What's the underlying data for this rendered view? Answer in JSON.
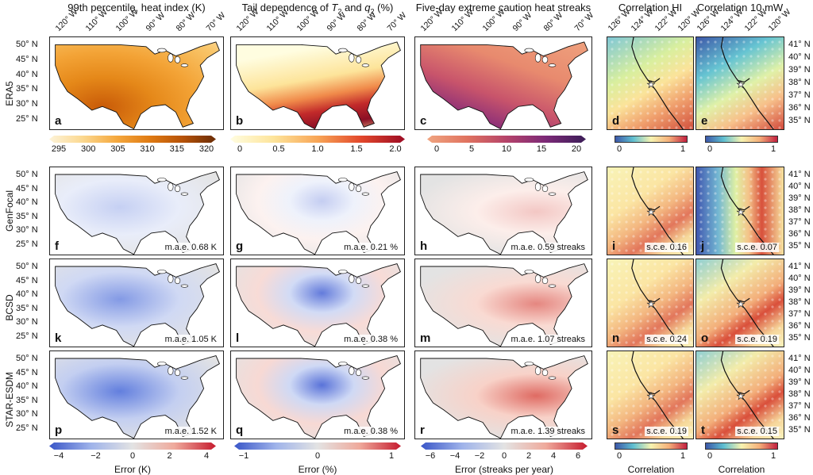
{
  "titles": {
    "col1": "99th percentile, heat index (K)",
    "col2_pre": "Tail dependence of ",
    "col2_t": "T",
    "col2_tsub": "2",
    "col2_and": " and ",
    "col2_q": "q",
    "col2_qsub": "2",
    "col2_post": " (%)",
    "col3": "Five-day extreme caution heat streaks",
    "col4": "Correlation HI",
    "col5": "Correlation 10 mW"
  },
  "rows": [
    "ERA5",
    "GenFocal",
    "BCSD",
    "STAR-ESDM"
  ],
  "lat_labels": [
    "50° N",
    "45° N",
    "40° N",
    "35° N",
    "30° N",
    "25° N"
  ],
  "lon_labels": [
    "120° W",
    "110° W",
    "100° W",
    "90° W",
    "80° W",
    "70° W"
  ],
  "ca_lat_labels": [
    "41° N",
    "40° N",
    "39° N",
    "38° N",
    "37° N",
    "36° N",
    "35° N"
  ],
  "ca_lon_labels": [
    "126° W",
    "124° W",
    "122° W",
    "120° W"
  ],
  "panels": {
    "a": {
      "label": "a",
      "err": ""
    },
    "b": {
      "label": "b",
      "err": ""
    },
    "c": {
      "label": "c",
      "err": ""
    },
    "d": {
      "label": "d",
      "err": ""
    },
    "e": {
      "label": "e",
      "err": ""
    },
    "f": {
      "label": "f",
      "err": "m.a.e. 0.68 K"
    },
    "g": {
      "label": "g",
      "err": "m.a.e. 0.21 %"
    },
    "h": {
      "label": "h",
      "err": "m.a.e. 0.59 streaks"
    },
    "i": {
      "label": "i",
      "err": "s.c.e. 0.16"
    },
    "j": {
      "label": "j",
      "err": "s.c.e. 0.07"
    },
    "k": {
      "label": "k",
      "err": "m.a.e. 1.05 K"
    },
    "l": {
      "label": "l",
      "err": "m.a.e. 0.38 %"
    },
    "m": {
      "label": "m",
      "err": "m.a.e. 1.07 streaks"
    },
    "n": {
      "label": "n",
      "err": "s.c.e. 0.24"
    },
    "o": {
      "label": "o",
      "err": "s.c.e. 0.19"
    },
    "p": {
      "label": "p",
      "err": "m.a.e. 1.52 K"
    },
    "q": {
      "label": "q",
      "err": "m.a.e. 0.38 %"
    },
    "r": {
      "label": "r",
      "err": "m.a.e. 1.39 streaks"
    },
    "s": {
      "label": "s",
      "err": "s.c.e. 0.19"
    },
    "t": {
      "label": "t",
      "err": "s.c.e. 0.15"
    }
  },
  "colorbars_top": {
    "heat": {
      "ticks": [
        "295",
        "300",
        "305",
        "310",
        "315",
        "320"
      ],
      "colors": [
        "#fdf3d8",
        "#fbd890",
        "#f5a93f",
        "#e07b13",
        "#b65208",
        "#6a2c05"
      ]
    },
    "tail": {
      "ticks": [
        "0",
        "0.5",
        "1.0",
        "1.5",
        "2.0"
      ],
      "colors": [
        "#fffde0",
        "#fde49a",
        "#f8a556",
        "#e2472b",
        "#9c0b24"
      ]
    },
    "streak": {
      "ticks": [
        "0",
        "5",
        "10",
        "15",
        "20"
      ],
      "colors": [
        "#f0a480",
        "#e0735f",
        "#b5436a",
        "#7b2977",
        "#3b1d57"
      ]
    },
    "corr": {
      "ticks": [
        "0",
        "1"
      ],
      "colors": [
        "#3c57a8",
        "#5fbfd0",
        "#f7f3b0",
        "#f5b07a",
        "#c2203f"
      ]
    }
  },
  "colorbars_bottom": {
    "heat": {
      "ticks": [
        "−4",
        "−2",
        "0",
        "2",
        "4"
      ],
      "label": "Error (K)"
    },
    "tail": {
      "ticks": [
        "−1",
        "0",
        "1"
      ],
      "label": "Error (%)"
    },
    "streak": {
      "ticks": [
        "−6",
        "−4",
        "−2",
        "0",
        "2",
        "4",
        "6"
      ],
      "label": "Error (streaks per year)"
    },
    "corr1": {
      "ticks": [
        "0",
        "1"
      ],
      "label": "Correlation"
    },
    "corr2": {
      "ticks": [
        "0",
        "1"
      ],
      "label": "Correlation"
    }
  },
  "colors": {
    "err_neg": "#3a56c8",
    "err_mid": "#e3e3e3",
    "err_pos": "#c61b2e"
  }
}
